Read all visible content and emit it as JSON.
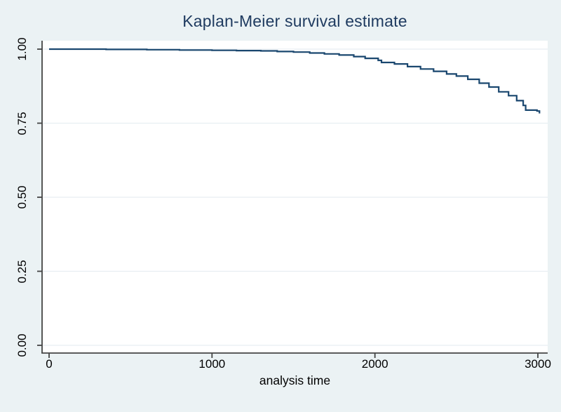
{
  "figure": {
    "background_color": "#ebf2f4",
    "plot_background_color": "#ffffff",
    "gridline_color": "#e7eef2",
    "axis_color": "#444444",
    "title_color": "#1e3a5f",
    "text_color": "#000000"
  },
  "chart_data": {
    "type": "line",
    "line_style": "step-after",
    "title": "Kaplan-Meier survival estimate",
    "xlabel": "analysis time",
    "ylabel": "",
    "xlim": [
      0,
      3060
    ],
    "ylim": [
      0,
      1
    ],
    "x_ticks": [
      0,
      1000,
      2000,
      3000
    ],
    "y_ticks": [
      {
        "value": 0.0,
        "label": "0.00"
      },
      {
        "value": 0.25,
        "label": "0.25"
      },
      {
        "value": 0.5,
        "label": "0.50"
      },
      {
        "value": 0.75,
        "label": "0.75"
      },
      {
        "value": 1.0,
        "label": "1.00"
      }
    ],
    "grid": "horizontal-faint",
    "legend": "none",
    "series": [
      {
        "name": "Kaplan-Meier survival estimate",
        "color": "#1a476f",
        "points": [
          [
            0,
            1.0
          ],
          [
            350,
            0.999
          ],
          [
            600,
            0.998
          ],
          [
            800,
            0.997
          ],
          [
            1000,
            0.996
          ],
          [
            1150,
            0.995
          ],
          [
            1300,
            0.994
          ],
          [
            1400,
            0.992
          ],
          [
            1500,
            0.99
          ],
          [
            1600,
            0.987
          ],
          [
            1690,
            0.984
          ],
          [
            1780,
            0.98
          ],
          [
            1870,
            0.975
          ],
          [
            1940,
            0.969
          ],
          [
            2020,
            0.962
          ],
          [
            2040,
            0.955
          ],
          [
            2120,
            0.95
          ],
          [
            2200,
            0.941
          ],
          [
            2280,
            0.933
          ],
          [
            2360,
            0.925
          ],
          [
            2440,
            0.916
          ],
          [
            2500,
            0.909
          ],
          [
            2570,
            0.898
          ],
          [
            2640,
            0.885
          ],
          [
            2700,
            0.872
          ],
          [
            2760,
            0.856
          ],
          [
            2820,
            0.843
          ],
          [
            2870,
            0.826
          ],
          [
            2910,
            0.81
          ],
          [
            2925,
            0.794
          ],
          [
            2995,
            0.791
          ],
          [
            3010,
            0.783
          ]
        ]
      }
    ]
  }
}
